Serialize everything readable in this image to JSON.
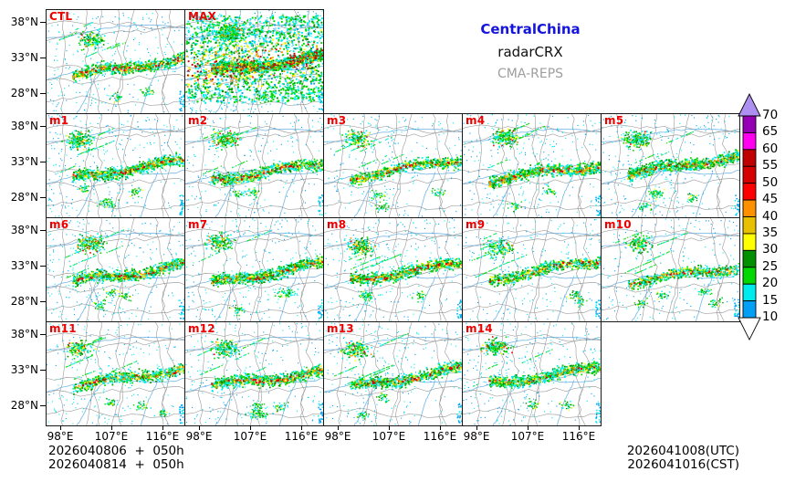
{
  "figure": {
    "title_region": "CentralChina",
    "title_variable": "radarCRX",
    "title_model": "CMA-REPS",
    "colors": {
      "title_region": "#1414DC",
      "title_variable": "#111111",
      "title_model": "#9E9E9E",
      "panel_label": "#EE0000",
      "panel_border": "#1a1a1a",
      "river": "#74B6E6",
      "boundary": "#909090"
    }
  },
  "panels": [
    {
      "label": "CTL"
    },
    {
      "label": "MAX"
    },
    {
      "label": "m1"
    },
    {
      "label": "m2"
    },
    {
      "label": "m3"
    },
    {
      "label": "m4"
    },
    {
      "label": "m5"
    },
    {
      "label": "m6"
    },
    {
      "label": "m7"
    },
    {
      "label": "m8"
    },
    {
      "label": "m9"
    },
    {
      "label": "m10"
    },
    {
      "label": "m11"
    },
    {
      "label": "m12"
    },
    {
      "label": "m13"
    },
    {
      "label": "m14"
    }
  ],
  "axes": {
    "y_ticks": [
      "38°N",
      "33°N",
      "28°N"
    ],
    "x_ticks": [
      "98°E",
      "107°E",
      "116°E"
    ]
  },
  "colorbar": {
    "tick_labels": [
      "70",
      "65",
      "60",
      "55",
      "50",
      "45",
      "40",
      "35",
      "30",
      "25",
      "20",
      "15",
      "10"
    ],
    "segment_colors_top_to_bottom": [
      "#9600B4",
      "#FF00F0",
      "#C00000",
      "#D60000",
      "#FF0000",
      "#FF9000",
      "#E7C000",
      "#FFFF00",
      "#019000",
      "#00D800",
      "#00ECEC",
      "#01A0F6"
    ],
    "over_color": "#AD90F0",
    "under_color": "#FFFFFF"
  },
  "footer": {
    "init_line_1": "2026040806  +  050h",
    "init_line_2": "2026040814  +  050h",
    "valid_line_1": "2026041008(UTC)",
    "valid_line_2": "2026041016(CST)"
  },
  "chart_data": {
    "type": "heatmap",
    "title": "CentralChina radarCRX CMA-REPS",
    "description": "Multi-panel ensemble composite radar reflectivity (dBZ) forecast maps: control (CTL), ensemble maximum (MAX) and members m1-m14 over central China",
    "panel_labels": [
      "CTL",
      "MAX",
      "m1",
      "m2",
      "m3",
      "m4",
      "m5",
      "m6",
      "m7",
      "m8",
      "m9",
      "m10",
      "m11",
      "m12",
      "m13",
      "m14"
    ],
    "panel_grid_rows": [
      [
        "CTL",
        "MAX"
      ],
      [
        "m1",
        "m2",
        "m3",
        "m4",
        "m5"
      ],
      [
        "m6",
        "m7",
        "m8",
        "m9",
        "m10"
      ],
      [
        "m11",
        "m12",
        "m13",
        "m14"
      ]
    ],
    "x_tick_labels": [
      "98°E",
      "107°E",
      "116°E"
    ],
    "y_tick_labels": [
      "38°N",
      "33°N",
      "28°N"
    ],
    "colorbar_levels_dbz": [
      10,
      15,
      20,
      25,
      30,
      35,
      40,
      45,
      50,
      55,
      60,
      65,
      70
    ],
    "colorbar_colors_low_to_high": [
      "#01A0F6",
      "#00ECEC",
      "#00D800",
      "#019000",
      "#FFFF00",
      "#E7C000",
      "#FF9000",
      "#FF0000",
      "#D60000",
      "#C00000",
      "#FF00F0",
      "#9600B4"
    ],
    "colorbar_over_color": "#AD90F0",
    "legend_position": "right",
    "init_times": [
      "2026040806 + 050h",
      "2026040814 + 050h"
    ],
    "valid_times": [
      "2026041008(UTC)",
      "2026041016(CST)"
    ]
  }
}
